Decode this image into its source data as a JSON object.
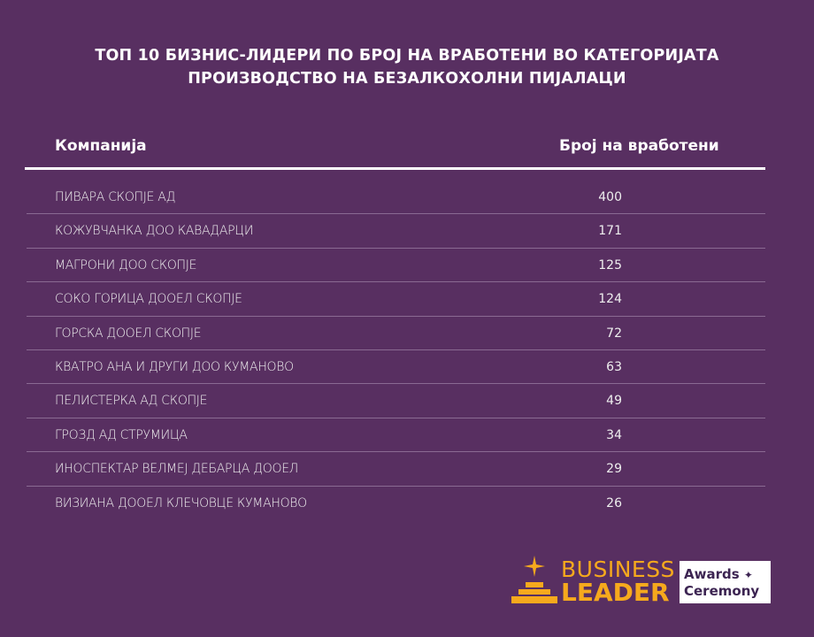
{
  "title": {
    "line1": "ТОП 10 БИЗНИС-ЛИДЕРИ ПО БРОЈ НА ВРАБОТЕНИ ВО КАТЕГОРИЈАТА",
    "line2": "ПРОИЗВОДСТВО НА БЕЗАЛКОХОЛНИ ПИЈАЛАЦИ"
  },
  "table": {
    "headers": {
      "company": "Компанија",
      "employees": "Број на вработени"
    },
    "rows": [
      {
        "name": "ПИВАРА СКОПЈЕ АД",
        "value": "400"
      },
      {
        "name": "КОЖУВЧАНКА ДОО КАВАДАРЦИ",
        "value": "171"
      },
      {
        "name": "МАГРОНИ ДОО СКОПЈЕ",
        "value": "125"
      },
      {
        "name": "СОКО ГОРИЦА ДООЕЛ СКОПЈЕ",
        "value": "124"
      },
      {
        "name": "ГОРСКА ДООЕЛ СКОПЈЕ",
        "value": "72"
      },
      {
        "name": "КВАТРО АНА И ДРУГИ ДОО КУМАНОВО",
        "value": "63"
      },
      {
        "name": "ПЕЛИСТЕРКА АД СКОПЈЕ",
        "value": "49"
      },
      {
        "name": "ГРОЗД АД СТРУМИЦА",
        "value": "34"
      },
      {
        "name": "ИНОСПЕКТАР ВЕЛМЕЈ ДЕБАРЦА ДООЕЛ",
        "value": "29"
      },
      {
        "name": "ВИЗИАНА ДООЕЛ КЛЕЧОВЦЕ КУМАНОВО",
        "value": "26"
      }
    ]
  },
  "logo": {
    "business": "BUSINESS",
    "leader": "LEADER",
    "awards": "Awards",
    "ceremony": "Ceremony"
  },
  "colors": {
    "background": "#582f61",
    "accent": "#f6a91d"
  }
}
